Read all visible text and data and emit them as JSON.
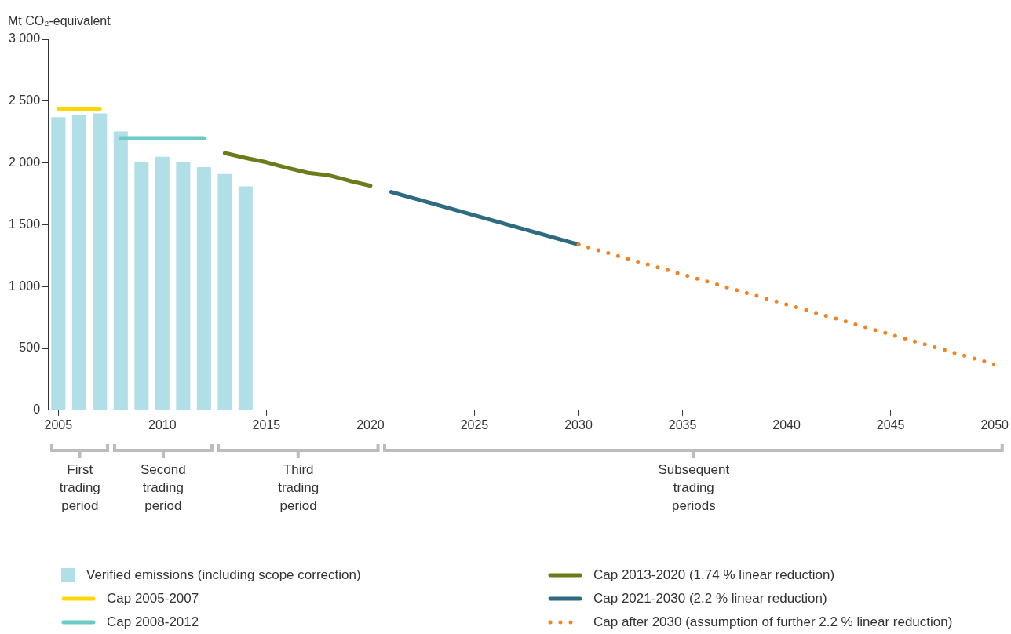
{
  "chart_data": {
    "type": "bar",
    "ylabel": "Mt CO₂-equivalent",
    "xlim": [
      2004.5,
      2050
    ],
    "xticks": [
      2005,
      2010,
      2015,
      2020,
      2025,
      2030,
      2035,
      2040,
      2045,
      2050
    ],
    "ylim": [
      0,
      3000
    ],
    "yticks": [
      0,
      {
        "value": 500,
        "label": "500"
      },
      {
        "value": 1000,
        "label": "1 000"
      },
      {
        "value": 1500,
        "label": "1 500"
      },
      {
        "value": 2000,
        "label": "2 000"
      },
      {
        "value": 2500,
        "label": "2 500"
      },
      {
        "value": 3000,
        "label": "3 000"
      }
    ],
    "grid": false,
    "legend": "bottom",
    "marker": "none",
    "series": [
      {
        "name": "Verified emissions (including scope correction)",
        "color": "#b0dfe8",
        "x": [
          2005,
          2006,
          2007,
          2008,
          2009,
          2010,
          2011,
          2012,
          2013,
          2014
        ],
        "values": [
          2370,
          2385,
          2400,
          2255,
          2010,
          2050,
          2010,
          1965,
          1910,
          1810
        ]
      },
      {
        "name": "Cap 2005-2007",
        "type": "line",
        "line_style": "solid",
        "color": "#fcd705",
        "x": [
          2005,
          2007
        ],
        "values": [
          2435,
          2435
        ]
      },
      {
        "name": "Cap 2008-2012",
        "type": "line",
        "line_style": "solid",
        "color": "#6ccbc6",
        "x": [
          2008,
          2012
        ],
        "values": [
          2200,
          2200
        ]
      },
      {
        "name": "Cap 2013-2020 (1.74 % linear reduction)",
        "type": "line",
        "line_style": "solid",
        "color": "#6b7c1c",
        "x": [
          2013,
          2014,
          2015,
          2016,
          2017,
          2018,
          2019,
          2020
        ],
        "values": [
          2080,
          2040,
          2005,
          1960,
          1920,
          1900,
          1855,
          1815
        ]
      },
      {
        "name": "Cap 2021-2030 (2.2 % linear reduction)",
        "type": "line",
        "line_style": "solid",
        "color": "#2e6b80",
        "x": [
          2021,
          2030
        ],
        "values": [
          1765,
          1340
        ]
      },
      {
        "name": "Cap after 2030 (assumption of further 2.2 % linear reduction)",
        "type": "line",
        "line_style": "dotted",
        "color": "#f58220",
        "x": [
          2030,
          2050
        ],
        "values": [
          1340,
          370
        ]
      }
    ],
    "annotations": [
      "First trading period",
      "Second trading period",
      "Third trading period",
      "Subsequent trading periods"
    ]
  }
}
